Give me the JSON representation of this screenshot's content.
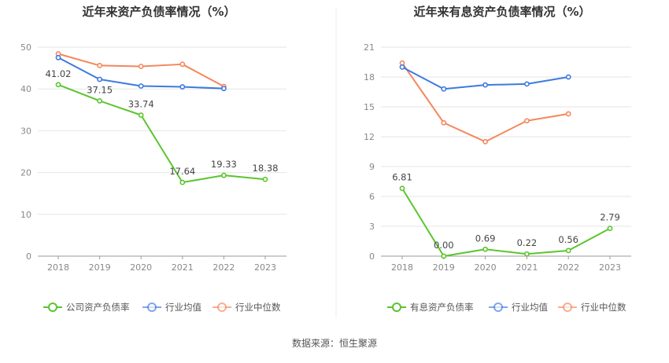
{
  "source_label": "数据来源：恒生聚源",
  "chart_data": [
    {
      "type": "line",
      "title": "近年来资产负债率情况（%）",
      "categories": [
        "2018",
        "2019",
        "2020",
        "2021",
        "2022",
        "2023"
      ],
      "ylim": [
        0,
        50
      ],
      "yticks": [
        0,
        10,
        20,
        30,
        40,
        50
      ],
      "grid": true,
      "legend_position": "bottom",
      "series": [
        {
          "name": "公司资产负债率",
          "color": "#5bc52d",
          "values": [
            41.02,
            37.15,
            33.74,
            17.64,
            19.33,
            18.38
          ],
          "labels": [
            "41.02",
            "37.15",
            "33.74",
            "17.64",
            "19.33",
            "18.38"
          ]
        },
        {
          "name": "行业均值",
          "color": "#3d7ae0",
          "values": [
            47.5,
            42.3,
            40.7,
            40.5,
            40.1,
            null
          ]
        },
        {
          "name": "行业中位数",
          "color": "#f4875c",
          "values": [
            48.4,
            45.6,
            45.4,
            45.9,
            40.6,
            null
          ]
        }
      ]
    },
    {
      "type": "line",
      "title": "近年来有息资产负债率情况（%）",
      "categories": [
        "2018",
        "2019",
        "2020",
        "2021",
        "2022",
        "2023"
      ],
      "ylim": [
        0,
        21
      ],
      "yticks": [
        0,
        3,
        6,
        9,
        12,
        15,
        18,
        21
      ],
      "grid": true,
      "legend_position": "bottom",
      "series": [
        {
          "name": "有息资产负债率",
          "color": "#5bc52d",
          "values": [
            6.81,
            0.0,
            0.69,
            0.22,
            0.56,
            2.79
          ],
          "labels": [
            "6.81",
            "0.00",
            "0.69",
            "0.22",
            "0.56",
            "2.79"
          ]
        },
        {
          "name": "行业均值",
          "color": "#3d7ae0",
          "values": [
            19.0,
            16.8,
            17.2,
            17.3,
            18.0,
            null
          ]
        },
        {
          "name": "行业中位数",
          "color": "#f4875c",
          "values": [
            19.4,
            13.4,
            11.5,
            13.6,
            14.3,
            null
          ]
        }
      ]
    }
  ]
}
